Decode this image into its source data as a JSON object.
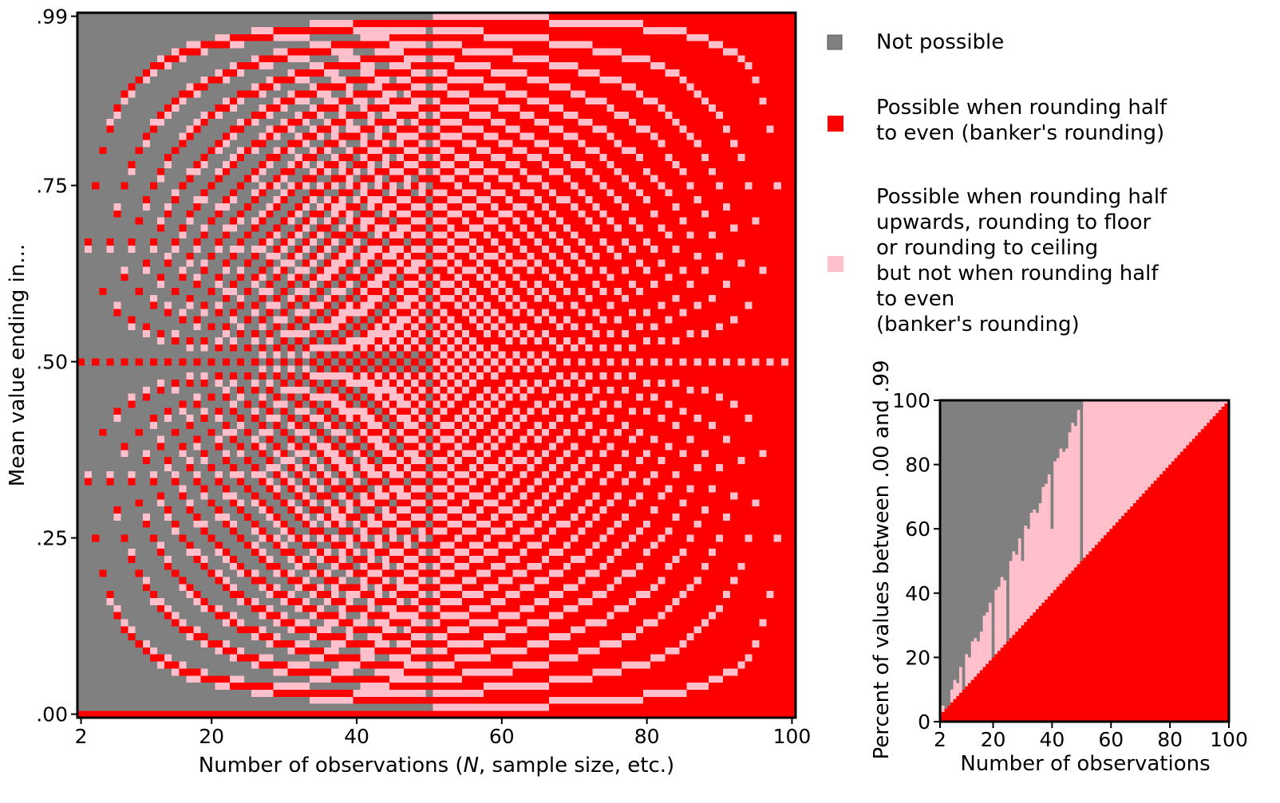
{
  "colors": {
    "not_possible": "#808080",
    "possible_half_even": "#ff0000",
    "possible_other_not_even": "#ffc0cb",
    "axes": "#000000",
    "background": "#ffffff"
  },
  "legend": {
    "items": [
      {
        "key": "not_possible",
        "lines": [
          "Not possible"
        ]
      },
      {
        "key": "possible_half_even",
        "lines": [
          "Possible when rounding half",
          "to even (banker's rounding)"
        ]
      },
      {
        "key": "possible_other_not_even",
        "lines": [
          "Possible when rounding half",
          "upwards, rounding to floor",
          "or rounding to ceiling",
          "but not when rounding half",
          "to even",
          "(banker's rounding)"
        ]
      }
    ]
  },
  "chart_data": [
    {
      "type": "heatmap",
      "title": "",
      "xlabel": "Number of observations (N, sample size, etc.)",
      "xlabel_parts": [
        "Number of observations (",
        "N",
        ", sample size, etc.)"
      ],
      "ylabel": "Mean value ending in...",
      "x_range": [
        2,
        100
      ],
      "y_range": [
        0,
        99
      ],
      "x_ticks": [
        2,
        20,
        40,
        60,
        80,
        100
      ],
      "x_tick_labels": [
        "2",
        "20",
        "40",
        "60",
        "80",
        "100"
      ],
      "y_ticks": [
        0,
        25,
        50,
        75,
        99
      ],
      "y_tick_labels": [
        ".00",
        ".25",
        ".50",
        ".75",
        ".99"
      ],
      "grid": false,
      "cell_rule": "For each N and each two-digit decimal ending d (.00 to .99): red if some integer sum S gives S/N rounding to d under round-half-to-even; pink if reachable only under round-half-up, floor or ceiling; grey if not reachable at all."
    },
    {
      "type": "area",
      "title": "",
      "xlabel": "Number of observations",
      "ylabel": "Percent of values between .00 and .99",
      "x_range": [
        2,
        100
      ],
      "ylim": [
        0,
        100
      ],
      "x_ticks": [
        2,
        20,
        40,
        60,
        80,
        100
      ],
      "x_tick_labels": [
        "2",
        "20",
        "40",
        "60",
        "80",
        "100"
      ],
      "y_ticks": [
        0,
        20,
        40,
        60,
        80,
        100
      ],
      "y_tick_labels": [
        "0",
        "20",
        "40",
        "60",
        "80",
        "100"
      ],
      "grid": false,
      "series": [
        {
          "key": "possible_half_even",
          "values": "percent of the 100 endings that are red for each N (about N)"
        },
        {
          "key": "possible_other_not_even",
          "values": "percent of endings that are pink, stacked above red (red + pink about 2N up to N = 50, then 100)"
        },
        {
          "key": "not_possible",
          "values": "remaining percent, stacked on top"
        }
      ]
    }
  ]
}
